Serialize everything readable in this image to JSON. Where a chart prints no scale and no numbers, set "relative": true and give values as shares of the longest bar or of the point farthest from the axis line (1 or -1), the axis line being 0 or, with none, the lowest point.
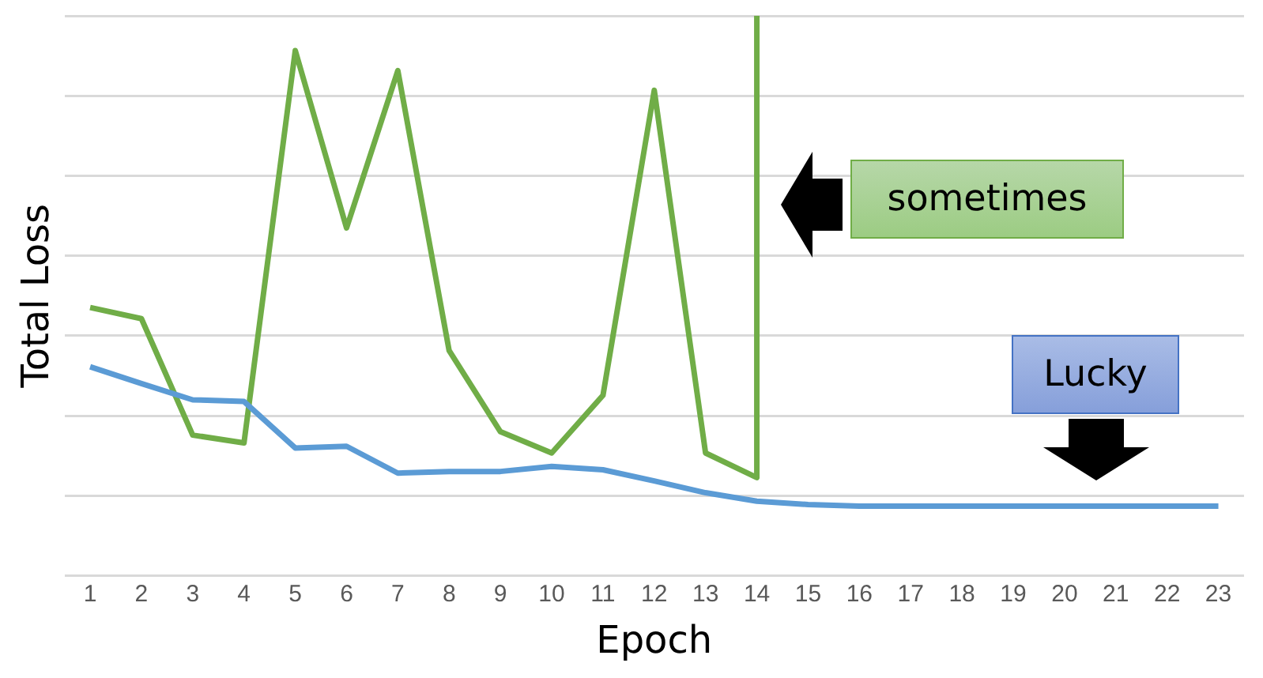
{
  "chart_data": {
    "type": "line",
    "xlabel": "Epoch",
    "ylabel": "Total Loss",
    "relative": true,
    "grid": "y",
    "legend": false,
    "marker": "none",
    "line_style": "solid",
    "xlim": [
      0.5,
      23.5
    ],
    "xticks": [
      1,
      2,
      3,
      4,
      5,
      6,
      7,
      8,
      9,
      10,
      11,
      12,
      13,
      14,
      15,
      16,
      17,
      18,
      19,
      20,
      21,
      22,
      23
    ],
    "series": [
      {
        "color": "#5b9bd5",
        "x": [
          1,
          2,
          3,
          4,
          5,
          6,
          7,
          8,
          9,
          10,
          11,
          12,
          13,
          14,
          15,
          16,
          17,
          18,
          19,
          20,
          21,
          22,
          23
        ],
        "values": [
          0.373,
          0.343,
          0.314,
          0.311,
          0.228,
          0.231,
          0.183,
          0.186,
          0.186,
          0.195,
          0.189,
          0.169,
          0.148,
          0.133,
          0.127,
          0.124,
          0.124,
          0.124,
          0.124,
          0.124,
          0.124,
          0.124,
          0.124
        ]
      },
      {
        "color": "#70ad47",
        "x": [
          1,
          2,
          3,
          4,
          5,
          6,
          7,
          8,
          9,
          10,
          11,
          12,
          13,
          14,
          14
        ],
        "values": [
          0.479,
          0.459,
          0.251,
          0.237,
          0.938,
          0.621,
          0.902,
          0.402,
          0.257,
          0.219,
          0.322,
          0.867,
          0.219,
          0.175,
          1
        ]
      }
    ],
    "annotations": [
      "sometimes",
      "Lucky"
    ]
  }
}
